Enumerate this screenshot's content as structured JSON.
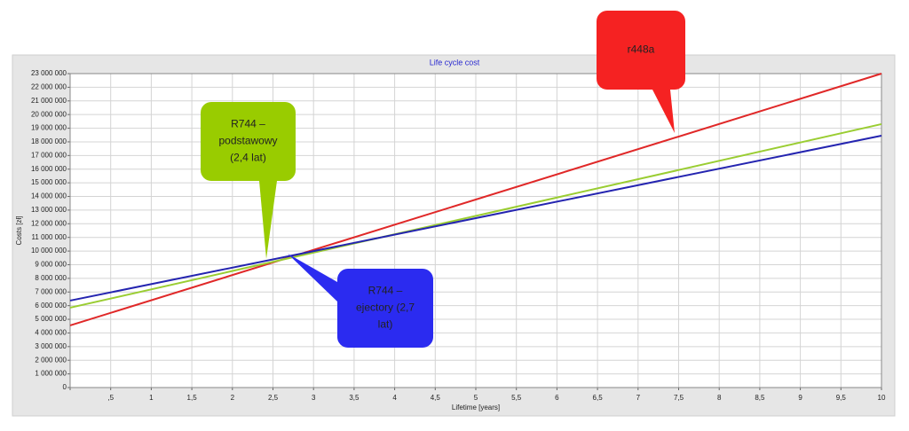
{
  "chart_data": {
    "type": "line",
    "title": "Life cycle cost",
    "x_label": "Lifetime [years]",
    "y_label": "Costs [zł]",
    "xlim": [
      0,
      10
    ],
    "xticks": [
      0,
      {
        "value": 0.5,
        "label": ",5"
      },
      1,
      {
        "value": 1.5,
        "label": "1,5"
      },
      2,
      {
        "value": 2.5,
        "label": "2,5"
      },
      3,
      {
        "value": 3.5,
        "label": "3,5"
      },
      4,
      {
        "value": 4.5,
        "label": "4,5"
      },
      5,
      {
        "value": 5.5,
        "label": "5,5"
      },
      6,
      {
        "value": 6.5,
        "label": "6,5"
      },
      7,
      {
        "value": 7.5,
        "label": "7,5"
      },
      8,
      {
        "value": 8.5,
        "label": "8,5"
      },
      9,
      {
        "value": 9.5,
        "label": "9,5"
      },
      10
    ],
    "ylim": [
      0,
      23000000
    ],
    "yticks": [
      0,
      {
        "value": 1000000,
        "label": "1 000 000"
      },
      {
        "value": 2000000,
        "label": "2 000 000"
      },
      {
        "value": 3000000,
        "label": "3 000 000"
      },
      {
        "value": 4000000,
        "label": "4 000 000"
      },
      {
        "value": 5000000,
        "label": "5 000 000"
      },
      {
        "value": 6000000,
        "label": "6 000 000"
      },
      {
        "value": 7000000,
        "label": "7 000 000"
      },
      {
        "value": 8000000,
        "label": "8 000 000"
      },
      {
        "value": 9000000,
        "label": "9 000 000"
      },
      {
        "value": 10000000,
        "label": "10 000 000"
      },
      {
        "value": 11000000,
        "label": "11 000 000"
      },
      {
        "value": 12000000,
        "label": "12 000 000"
      },
      {
        "value": 13000000,
        "label": "13 000 000"
      },
      {
        "value": 14000000,
        "label": "14 000 000"
      },
      {
        "value": 15000000,
        "label": "15 000 000"
      },
      {
        "value": 16000000,
        "label": "16 000 000"
      },
      {
        "value": 17000000,
        "label": "17 000 000"
      },
      {
        "value": 18000000,
        "label": "18 000 000"
      },
      {
        "value": 19000000,
        "label": "19 000 000"
      },
      {
        "value": 20000000,
        "label": "20 000 000"
      },
      {
        "value": 21000000,
        "label": "21 000 000"
      },
      {
        "value": 22000000,
        "label": "22 000 000"
      },
      {
        "value": 23000000,
        "label": "23 000 000"
      }
    ],
    "grid": true,
    "series": [
      {
        "color": "#e02828",
        "x": [
          0,
          10
        ],
        "values": [
          4550000,
          23000000
        ]
      },
      {
        "color": "#9acd32",
        "x": [
          0,
          10
        ],
        "values": [
          5850000,
          19300000
        ]
      },
      {
        "color": "#2424b0",
        "x": [
          0,
          10
        ],
        "values": [
          6370000,
          18450000
        ]
      }
    ],
    "annotations": [
      {
        "lines": [
          "r448a"
        ],
        "color": "#f52222"
      },
      {
        "lines": [
          "R744 –",
          "podstawowy",
          "(2,4 lat)"
        ],
        "color": "#99cc00"
      },
      {
        "lines": [
          "R744 –",
          "ejectory (2,7",
          "lat)"
        ],
        "color": "#2b2bf0"
      }
    ]
  }
}
